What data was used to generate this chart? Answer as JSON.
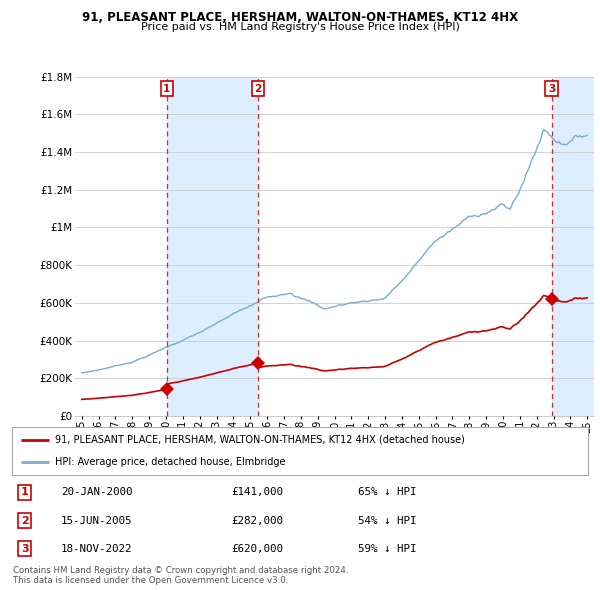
{
  "title": "91, PLEASANT PLACE, HERSHAM, WALTON-ON-THAMES, KT12 4HX",
  "subtitle": "Price paid vs. HM Land Registry's House Price Index (HPI)",
  "legend_label_red": "91, PLEASANT PLACE, HERSHAM, WALTON-ON-THAMES, KT12 4HX (detached house)",
  "legend_label_blue": "HPI: Average price, detached house, Elmbridge",
  "footer1": "Contains HM Land Registry data © Crown copyright and database right 2024.",
  "footer2": "This data is licensed under the Open Government Licence v3.0.",
  "transactions": [
    {
      "num": 1,
      "date": "20-JAN-2000",
      "price": "£141,000",
      "hpi": "65% ↓ HPI",
      "year": 2000.05
    },
    {
      "num": 2,
      "date": "15-JUN-2005",
      "price": "£282,000",
      "hpi": "54% ↓ HPI",
      "year": 2005.46
    },
    {
      "num": 3,
      "date": "18-NOV-2022",
      "price": "£620,000",
      "hpi": "59% ↓ HPI",
      "year": 2022.88
    }
  ],
  "transaction_values": [
    141000,
    282000,
    620000
  ],
  "transaction_years": [
    2000.05,
    2005.46,
    2022.88
  ],
  "ylim": [
    0,
    1800000
  ],
  "yticks": [
    0,
    200000,
    400000,
    600000,
    800000,
    1000000,
    1200000,
    1400000,
    1600000,
    1800000
  ],
  "ytick_labels": [
    "£0",
    "£200K",
    "£400K",
    "£600K",
    "£800K",
    "£1M",
    "£1.2M",
    "£1.4M",
    "£1.6M",
    "£1.8M"
  ],
  "red_color": "#cc0000",
  "blue_color": "#7aadcf",
  "shade_color": "#ddeeff",
  "dashed_color": "#cc0000",
  "background_color": "#ffffff",
  "grid_color": "#cccccc",
  "xlim_left": 1994.6,
  "xlim_right": 2025.4
}
